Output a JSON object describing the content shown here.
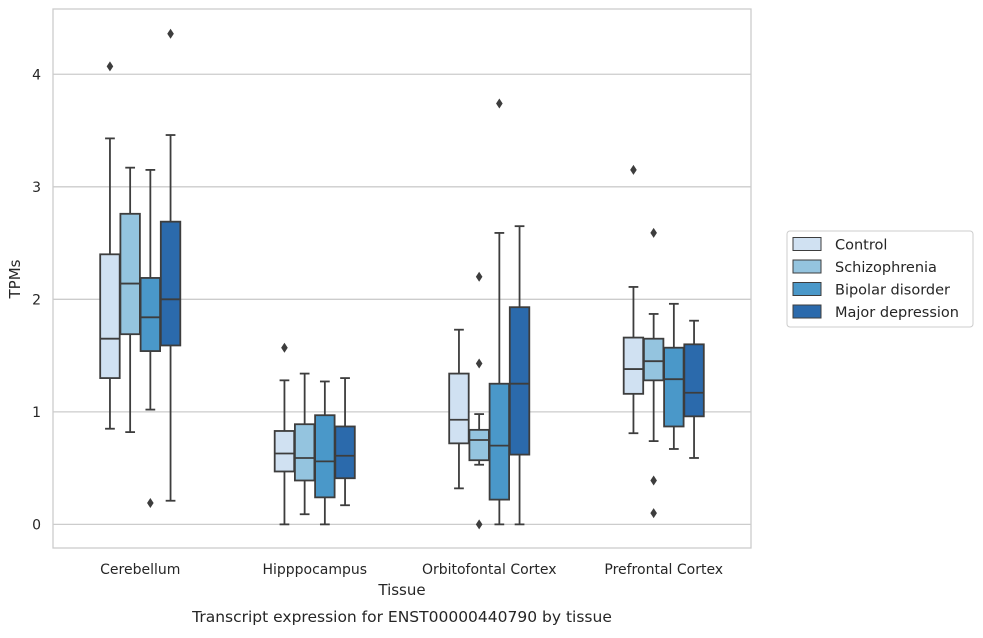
{
  "caption": "Transcript expression for ENST00000440790 by tissue",
  "chart_data": {
    "type": "box",
    "xlabel": "Tissue",
    "ylabel": "TPMs",
    "ylim": [
      -0.21,
      4.58
    ],
    "yticks": [
      0,
      1,
      2,
      3,
      4
    ],
    "grid": true,
    "legend_position": "right",
    "categories": [
      "Cerebellum",
      "Hipppocampus",
      "Orbitofontal Cortex",
      "Prefrontal Cortex"
    ],
    "series": [
      {
        "name": "Control",
        "color": "#d0e1f2",
        "boxes": [
          {
            "whisker_low": 0.85,
            "q1": 1.3,
            "median": 1.65,
            "q3": 2.4,
            "whisker_high": 3.43,
            "outliers": [
              4.07
            ]
          },
          {
            "whisker_low": 0.0,
            "q1": 0.47,
            "median": 0.63,
            "q3": 0.83,
            "whisker_high": 1.28,
            "outliers": [
              1.57
            ]
          },
          {
            "whisker_low": 0.32,
            "q1": 0.72,
            "median": 0.93,
            "q3": 1.34,
            "whisker_high": 1.73,
            "outliers": []
          },
          {
            "whisker_low": 0.81,
            "q1": 1.16,
            "median": 1.38,
            "q3": 1.66,
            "whisker_high": 2.11,
            "outliers": [
              3.15
            ]
          }
        ]
      },
      {
        "name": "Schizophrenia",
        "color": "#94c4df",
        "boxes": [
          {
            "whisker_low": 0.82,
            "q1": 1.69,
            "median": 2.14,
            "q3": 2.76,
            "whisker_high": 3.17,
            "outliers": []
          },
          {
            "whisker_low": 0.09,
            "q1": 0.39,
            "median": 0.59,
            "q3": 0.89,
            "whisker_high": 1.34,
            "outliers": []
          },
          {
            "whisker_low": 0.53,
            "q1": 0.57,
            "median": 0.75,
            "q3": 0.84,
            "whisker_high": 0.98,
            "outliers": [
              0.0,
              1.43,
              2.2
            ]
          },
          {
            "whisker_low": 0.74,
            "q1": 1.28,
            "median": 1.45,
            "q3": 1.65,
            "whisker_high": 1.87,
            "outliers": [
              0.39,
              0.1,
              2.59
            ]
          }
        ]
      },
      {
        "name": "Bipolar disorder",
        "color": "#4a98c9",
        "boxes": [
          {
            "whisker_low": 1.02,
            "q1": 1.54,
            "median": 1.84,
            "q3": 2.19,
            "whisker_high": 3.15,
            "outliers": [
              0.19
            ]
          },
          {
            "whisker_low": 0.0,
            "q1": 0.24,
            "median": 0.56,
            "q3": 0.97,
            "whisker_high": 1.27,
            "outliers": []
          },
          {
            "whisker_low": 0.0,
            "q1": 0.22,
            "median": 0.7,
            "q3": 1.25,
            "whisker_high": 2.59,
            "outliers": [
              3.74
            ]
          },
          {
            "whisker_low": 0.67,
            "q1": 0.87,
            "median": 1.29,
            "q3": 1.57,
            "whisker_high": 1.96,
            "outliers": []
          }
        ]
      },
      {
        "name": "Major depression",
        "color": "#2b6aac",
        "boxes": [
          {
            "whisker_low": 0.21,
            "q1": 1.59,
            "median": 2.0,
            "q3": 2.69,
            "whisker_high": 3.46,
            "outliers": [
              4.36
            ]
          },
          {
            "whisker_low": 0.17,
            "q1": 0.41,
            "median": 0.61,
            "q3": 0.87,
            "whisker_high": 1.3,
            "outliers": []
          },
          {
            "whisker_low": 0.0,
            "q1": 0.62,
            "median": 1.25,
            "q3": 1.93,
            "whisker_high": 2.65,
            "outliers": []
          },
          {
            "whisker_low": 0.59,
            "q1": 0.96,
            "median": 1.17,
            "q3": 1.6,
            "whisker_high": 1.81,
            "outliers": []
          }
        ]
      }
    ]
  }
}
